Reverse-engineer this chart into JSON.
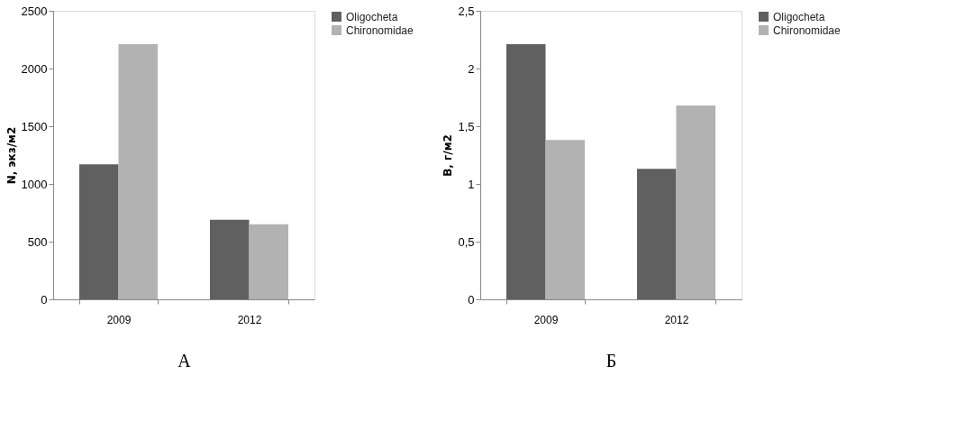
{
  "chart_data": [
    {
      "type": "bar",
      "xlabel": "А",
      "ylabel": "N, экз/м2",
      "categories": [
        "2009",
        "2012"
      ],
      "series": [
        {
          "name": "Oligocheta",
          "color": "#606060",
          "values": [
            1170,
            690
          ]
        },
        {
          "name": "Chironomidae",
          "color": "#b2b2b2",
          "values": [
            2210,
            650
          ]
        }
      ],
      "ylim": [
        0,
        2500
      ],
      "yticks": [
        0,
        500,
        1000,
        1500,
        2000,
        2500
      ],
      "grid": false,
      "legend": "right"
    },
    {
      "type": "bar",
      "xlabel": "Б",
      "ylabel": "B, г/м2",
      "categories": [
        "2009",
        "2012"
      ],
      "series": [
        {
          "name": "Oligocheta",
          "color": "#606060",
          "values": [
            2.21,
            1.13
          ]
        },
        {
          "name": "Chironomidae",
          "color": "#b2b2b2",
          "values": [
            1.38,
            1.68
          ]
        }
      ],
      "ylim": [
        0,
        2.5
      ],
      "yticks": [
        0,
        {
          "value": 0.5,
          "label": "0,5"
        },
        1,
        {
          "value": 1.5,
          "label": "1,5"
        },
        2,
        {
          "value": 2.5,
          "label": "2,5"
        }
      ],
      "grid": false,
      "legend": "right"
    }
  ]
}
